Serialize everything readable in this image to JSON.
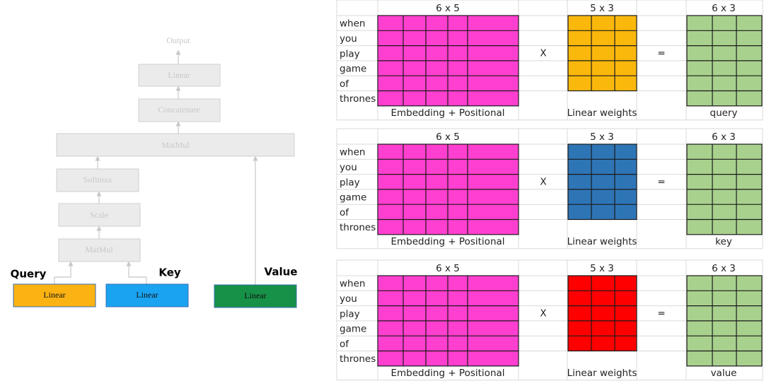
{
  "left": {
    "output": "Output",
    "blocks": [
      "Linear",
      "Concatenate",
      "MatMul",
      "Softmax",
      "Scale",
      "MatMul"
    ],
    "inputs": [
      {
        "label": "Query",
        "block": "Linear",
        "color": "#fbb313"
      },
      {
        "label": "Key",
        "block": "Linear",
        "color": "#1aa3f0"
      },
      {
        "label": "Value",
        "block": "Linear",
        "color": "#169147"
      }
    ]
  },
  "panels": [
    {
      "input_shape": "6 x 5",
      "weight_shape": "5 x 3",
      "output_shape": "6 x 3",
      "tokens": [
        "when",
        "you",
        "play",
        "game",
        "of",
        "thrones"
      ],
      "times": "X",
      "equals": "=",
      "input_caption": "Embedding + Positional",
      "weight_caption": "Linear weights",
      "output_caption": "query",
      "weight_color": "#fbb80c"
    },
    {
      "input_shape": "6 x 5",
      "weight_shape": "5 x 3",
      "output_shape": "6 x 3",
      "tokens": [
        "when",
        "you",
        "play",
        "game",
        "of",
        "thrones"
      ],
      "times": "X",
      "equals": "=",
      "input_caption": "Embedding + Positional",
      "weight_caption": "Linear weights",
      "output_caption": "key",
      "weight_color": "#2e75b6"
    },
    {
      "input_shape": "6 x 5",
      "weight_shape": "5 x 3",
      "output_shape": "6 x 3",
      "tokens": [
        "when",
        "you",
        "play",
        "game",
        "of",
        "thrones"
      ],
      "times": "X",
      "equals": "=",
      "input_caption": "Embedding + Positional",
      "weight_caption": "Linear weights",
      "output_caption": "value",
      "weight_color": "#fe0000"
    }
  ]
}
